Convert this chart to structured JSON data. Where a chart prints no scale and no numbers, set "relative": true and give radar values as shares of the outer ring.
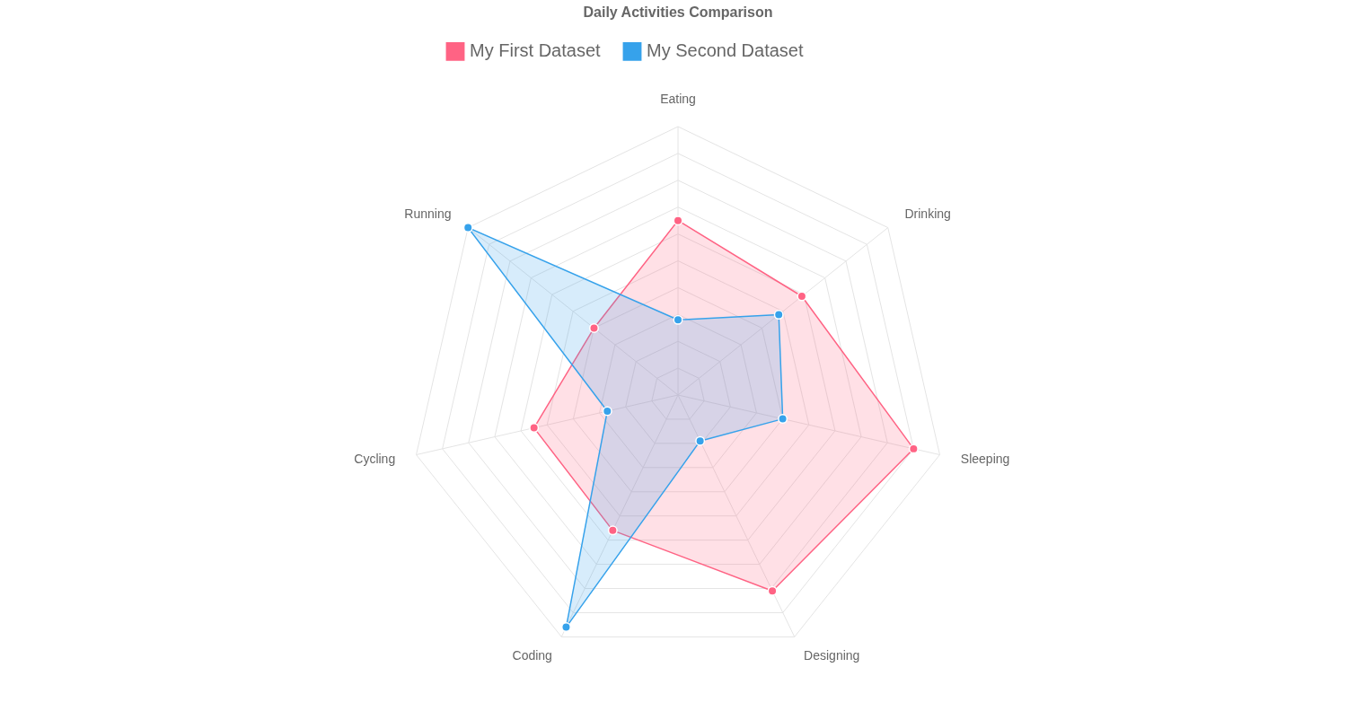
{
  "chart_data": {
    "type": "radar",
    "title": "Daily Activities Comparison",
    "relative": true,
    "grid": true,
    "legend": "top",
    "marker": "circle",
    "categories": [
      "Eating",
      "Drinking",
      "Sleeping",
      "Designing",
      "Coding",
      "Cycling",
      "Running"
    ],
    "series": [
      {
        "name": "My First Dataset",
        "color": "#ff6384",
        "values": [
          0.65,
          0.59,
          0.9,
          0.81,
          0.56,
          0.55,
          0.4
        ]
      },
      {
        "name": "My Second Dataset",
        "color": "#36a2eb",
        "values": [
          0.28,
          0.48,
          0.4,
          0.19,
          0.96,
          0.27,
          1.0
        ]
      }
    ]
  }
}
